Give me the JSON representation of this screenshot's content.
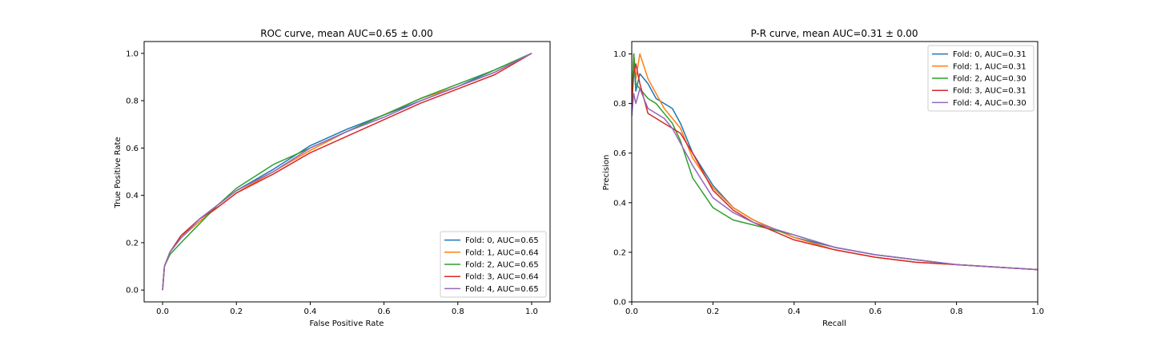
{
  "chart_data": [
    {
      "type": "line",
      "title": "ROC curve, mean AUC=0.65 ± 0.00",
      "xlabel": "False Positive Rate",
      "ylabel": "True Positive Rate",
      "xlim": [
        -0.05,
        1.05
      ],
      "ylim": [
        -0.05,
        1.05
      ],
      "xticks": [
        0.0,
        0.2,
        0.4,
        0.6,
        0.8,
        1.0
      ],
      "yticks": [
        0.0,
        0.2,
        0.4,
        0.6,
        0.8,
        1.0
      ],
      "tick_labels": [
        "0.0",
        "0.2",
        "0.4",
        "0.6",
        "0.8",
        "1.0"
      ],
      "legend_position": "lower-right",
      "grid": false,
      "series": [
        {
          "name": "Fold: 0, AUC=0.65",
          "color": "#1f77b4",
          "x": [
            0.0,
            0.005,
            0.02,
            0.05,
            0.1,
            0.15,
            0.2,
            0.3,
            0.4,
            0.5,
            0.6,
            0.7,
            0.8,
            0.9,
            1.0
          ],
          "y": [
            0.0,
            0.1,
            0.16,
            0.23,
            0.3,
            0.36,
            0.42,
            0.51,
            0.61,
            0.68,
            0.74,
            0.8,
            0.86,
            0.93,
            1.0
          ]
        },
        {
          "name": "Fold: 1, AUC=0.64",
          "color": "#ff7f0e",
          "x": [
            0.0,
            0.005,
            0.02,
            0.05,
            0.1,
            0.15,
            0.2,
            0.3,
            0.4,
            0.5,
            0.6,
            0.7,
            0.8,
            0.9,
            1.0
          ],
          "y": [
            0.0,
            0.1,
            0.16,
            0.22,
            0.29,
            0.35,
            0.41,
            0.5,
            0.59,
            0.67,
            0.74,
            0.81,
            0.86,
            0.92,
            1.0
          ]
        },
        {
          "name": "Fold: 2, AUC=0.65",
          "color": "#2ca02c",
          "x": [
            0.0,
            0.005,
            0.02,
            0.05,
            0.1,
            0.15,
            0.2,
            0.3,
            0.4,
            0.5,
            0.6,
            0.7,
            0.8,
            0.9,
            1.0
          ],
          "y": [
            0.0,
            0.1,
            0.15,
            0.2,
            0.28,
            0.36,
            0.43,
            0.53,
            0.6,
            0.67,
            0.74,
            0.81,
            0.87,
            0.93,
            1.0
          ]
        },
        {
          "name": "Fold: 3, AUC=0.64",
          "color": "#d62728",
          "x": [
            0.0,
            0.005,
            0.02,
            0.05,
            0.1,
            0.15,
            0.2,
            0.3,
            0.4,
            0.5,
            0.6,
            0.7,
            0.8,
            0.9,
            1.0
          ],
          "y": [
            0.0,
            0.1,
            0.16,
            0.23,
            0.3,
            0.35,
            0.41,
            0.49,
            0.58,
            0.65,
            0.72,
            0.79,
            0.85,
            0.91,
            1.0
          ]
        },
        {
          "name": "Fold: 4, AUC=0.65",
          "color": "#9467bd",
          "x": [
            0.0,
            0.005,
            0.02,
            0.05,
            0.1,
            0.15,
            0.2,
            0.3,
            0.4,
            0.5,
            0.6,
            0.7,
            0.8,
            0.9,
            1.0
          ],
          "y": [
            0.0,
            0.1,
            0.16,
            0.22,
            0.3,
            0.36,
            0.42,
            0.5,
            0.6,
            0.67,
            0.73,
            0.8,
            0.86,
            0.92,
            1.0
          ]
        }
      ]
    },
    {
      "type": "line",
      "title": "P-R curve, mean AUC=0.31 ± 0.00",
      "xlabel": "Recall",
      "ylabel": "Precision",
      "xlim": [
        0.0,
        1.0
      ],
      "ylim": [
        0.0,
        1.05
      ],
      "xticks": [
        0.0,
        0.2,
        0.4,
        0.6,
        0.8,
        1.0
      ],
      "yticks": [
        0.0,
        0.2,
        0.4,
        0.6,
        0.8,
        1.0
      ],
      "tick_labels": [
        "0.0",
        "0.2",
        "0.4",
        "0.6",
        "0.8",
        "1.0"
      ],
      "legend_position": "upper-right",
      "grid": false,
      "series": [
        {
          "name": "Fold: 0, AUC=0.31",
          "color": "#1f77b4",
          "x": [
            0.0,
            0.005,
            0.01,
            0.02,
            0.04,
            0.06,
            0.08,
            0.1,
            0.12,
            0.15,
            0.2,
            0.25,
            0.3,
            0.4,
            0.5,
            0.6,
            0.7,
            0.8,
            0.9,
            1.0
          ],
          "y": [
            0.75,
            1.0,
            0.85,
            0.92,
            0.88,
            0.82,
            0.8,
            0.78,
            0.72,
            0.6,
            0.47,
            0.38,
            0.33,
            0.26,
            0.22,
            0.19,
            0.17,
            0.15,
            0.14,
            0.13
          ]
        },
        {
          "name": "Fold: 1, AUC=0.31",
          "color": "#ff7f0e",
          "x": [
            0.0,
            0.005,
            0.01,
            0.02,
            0.04,
            0.06,
            0.08,
            0.1,
            0.12,
            0.15,
            0.2,
            0.25,
            0.3,
            0.4,
            0.5,
            0.6,
            0.7,
            0.8,
            0.9,
            1.0
          ],
          "y": [
            0.8,
            1.0,
            0.9,
            1.0,
            0.9,
            0.84,
            0.78,
            0.74,
            0.7,
            0.58,
            0.46,
            0.38,
            0.33,
            0.26,
            0.21,
            0.18,
            0.16,
            0.15,
            0.14,
            0.13
          ]
        },
        {
          "name": "Fold: 2, AUC=0.30",
          "color": "#2ca02c",
          "x": [
            0.0,
            0.005,
            0.01,
            0.02,
            0.04,
            0.06,
            0.08,
            0.1,
            0.12,
            0.15,
            0.2,
            0.25,
            0.3,
            0.4,
            0.5,
            0.6,
            0.7,
            0.8,
            0.9,
            1.0
          ],
          "y": [
            0.8,
            1.0,
            0.88,
            0.86,
            0.82,
            0.8,
            0.76,
            0.72,
            0.65,
            0.5,
            0.38,
            0.33,
            0.31,
            0.27,
            0.22,
            0.19,
            0.17,
            0.15,
            0.14,
            0.13
          ]
        },
        {
          "name": "Fold: 3, AUC=0.31",
          "color": "#d62728",
          "x": [
            0.0,
            0.005,
            0.01,
            0.02,
            0.04,
            0.06,
            0.08,
            0.1,
            0.12,
            0.15,
            0.2,
            0.25,
            0.3,
            0.4,
            0.5,
            0.6,
            0.7,
            0.8,
            0.9,
            1.0
          ],
          "y": [
            0.8,
            0.92,
            0.96,
            0.88,
            0.76,
            0.74,
            0.72,
            0.7,
            0.68,
            0.6,
            0.45,
            0.37,
            0.32,
            0.25,
            0.21,
            0.18,
            0.16,
            0.15,
            0.14,
            0.13
          ]
        },
        {
          "name": "Fold: 4, AUC=0.30",
          "color": "#9467bd",
          "x": [
            0.0,
            0.005,
            0.01,
            0.02,
            0.04,
            0.06,
            0.08,
            0.1,
            0.12,
            0.15,
            0.2,
            0.25,
            0.3,
            0.4,
            0.5,
            0.6,
            0.7,
            0.8,
            0.9,
            1.0
          ],
          "y": [
            0.75,
            0.84,
            0.8,
            0.86,
            0.78,
            0.76,
            0.74,
            0.7,
            0.64,
            0.55,
            0.42,
            0.36,
            0.32,
            0.27,
            0.22,
            0.19,
            0.17,
            0.15,
            0.14,
            0.13
          ]
        }
      ]
    }
  ]
}
